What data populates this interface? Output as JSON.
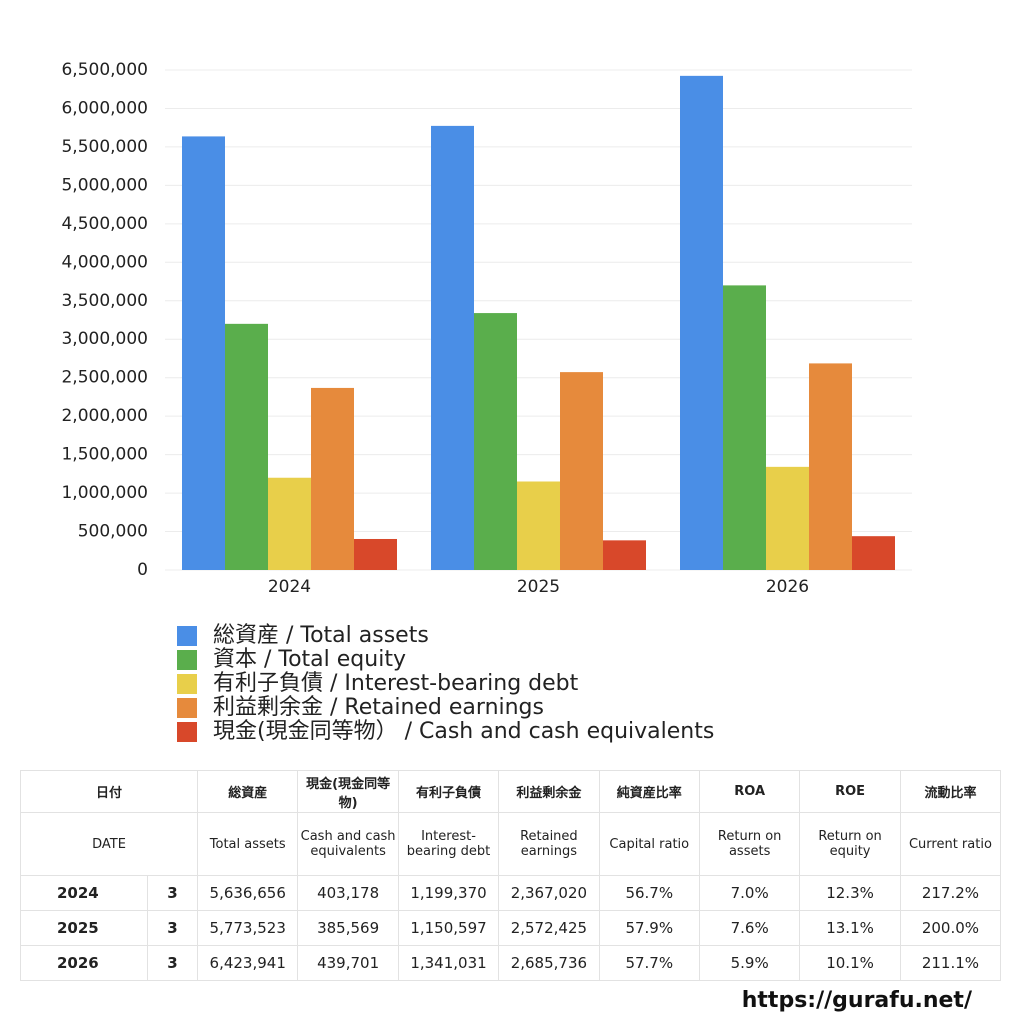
{
  "chart_data": {
    "type": "bar",
    "categories": [
      "2024",
      "2025",
      "2026"
    ],
    "series": [
      {
        "name": "総資産 / Total assets",
        "color": "#4a8ee6",
        "values": [
          5636656,
          5773523,
          6423941
        ]
      },
      {
        "name": "資本 / Total equity",
        "color": "#5aae4c",
        "values": [
          3200000,
          3340000,
          3700000
        ]
      },
      {
        "name": "有利子負債 / Interest-bearing debt",
        "color": "#e8cf4a",
        "values": [
          1199370,
          1150597,
          1341031
        ]
      },
      {
        "name": "利益剰余金 / Retained earnings",
        "color": "#e68a3c",
        "values": [
          2367020,
          2572425,
          2685736
        ]
      },
      {
        "name": "現金(現金同等物） /  Cash and cash equivalents",
        "color": "#d8482a",
        "values": [
          403178,
          385569,
          439701
        ]
      }
    ],
    "ylim": [
      0,
      6500000
    ],
    "yticks": [
      0,
      {
        "value": 500000,
        "label": "500,000"
      },
      {
        "value": 1000000,
        "label": "1,000,000"
      },
      {
        "value": 1500000,
        "label": "1,500,000"
      },
      {
        "value": 2000000,
        "label": "2,000,000"
      },
      {
        "value": 2500000,
        "label": "2,500,000"
      },
      {
        "value": 3000000,
        "label": "3,000,000"
      },
      {
        "value": 3500000,
        "label": "3,500,000"
      },
      {
        "value": 4000000,
        "label": "4,000,000"
      },
      {
        "value": 4500000,
        "label": "4,500,000"
      },
      {
        "value": 5000000,
        "label": "5,000,000"
      },
      {
        "value": 5500000,
        "label": "5,500,000"
      },
      {
        "value": 6000000,
        "label": "6,000,000"
      },
      {
        "value": 6500000,
        "label": "6,500,000"
      }
    ],
    "grid": true
  },
  "table": {
    "header": [
      [
        "日付",
        "総資産",
        "現金(現金同等物)",
        "有利子負債",
        "利益剰余金",
        "純資産比率",
        "ROA",
        "ROE",
        "流動比率"
      ],
      [
        "DATE",
        "Total assets",
        "Cash and cash equivalents",
        "Interest-bearing debt",
        "Retained earnings",
        "Capital ratio",
        "Return on assets",
        "Return on equity",
        "Current ratio"
      ]
    ],
    "rows": [
      [
        "2024",
        "3",
        "5,636,656",
        "403,178",
        "1,199,370",
        "2,367,020",
        "56.7%",
        "7.0%",
        "12.3%",
        "217.2%"
      ],
      [
        "2025",
        "3",
        "5,773,523",
        "385,569",
        "1,150,597",
        "2,572,425",
        "57.9%",
        "7.6%",
        "13.1%",
        "200.0%"
      ],
      [
        "2026",
        "3",
        "6,423,941",
        "439,701",
        "1,341,031",
        "2,685,736",
        "57.7%",
        "5.9%",
        "10.1%",
        "211.1%"
      ]
    ]
  },
  "footer": "https://gurafu.net/"
}
